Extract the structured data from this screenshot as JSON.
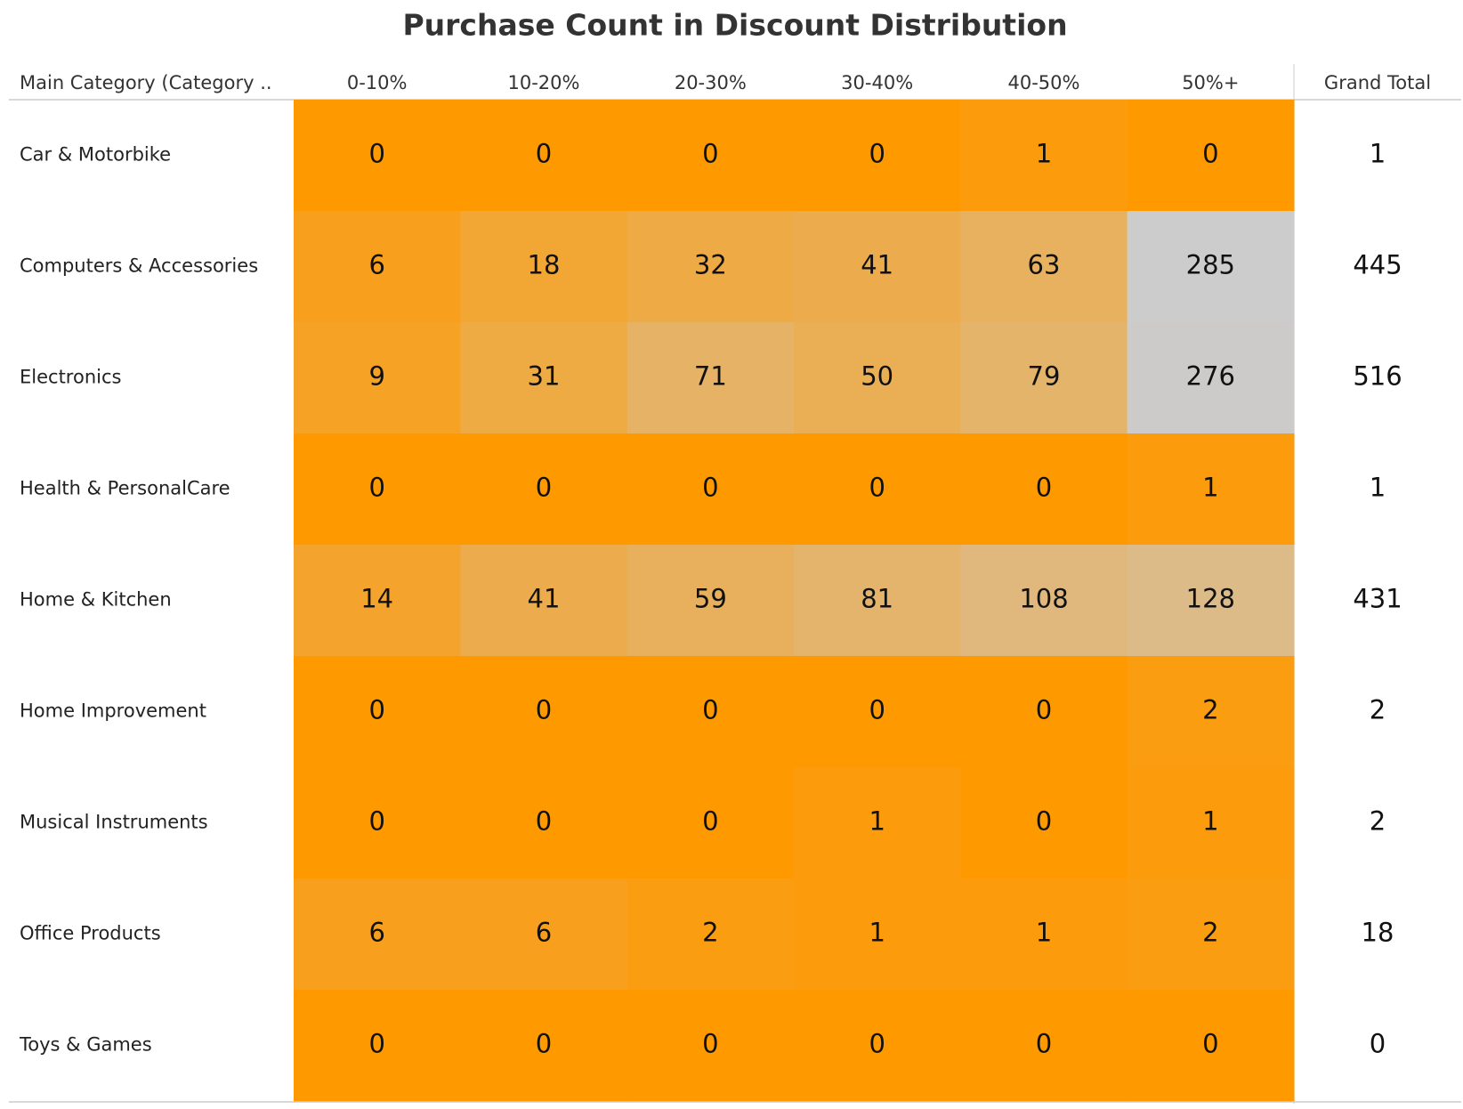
{
  "chart_data": {
    "type": "heatmap",
    "title": "Purchase Count in Discount Distribution",
    "row_header": "Main Category (Category ..",
    "total_header": "Grand Total",
    "columns": [
      "0-10%",
      "10-20%",
      "20-30%",
      "30-40%",
      "40-50%",
      "50%+"
    ],
    "rows": [
      "Car & Motorbike",
      "Computers & Accessories",
      "Electronics",
      "Health & PersonalCare",
      "Home & Kitchen",
      "Home Improvement",
      "Musical Instruments",
      "Office Products",
      "Toys & Games"
    ],
    "values": [
      [
        0,
        0,
        0,
        0,
        1,
        0
      ],
      [
        6,
        18,
        32,
        41,
        63,
        285
      ],
      [
        9,
        31,
        71,
        50,
        79,
        276
      ],
      [
        0,
        0,
        0,
        0,
        0,
        1
      ],
      [
        14,
        41,
        59,
        81,
        108,
        128
      ],
      [
        0,
        0,
        0,
        0,
        0,
        2
      ],
      [
        0,
        0,
        0,
        1,
        0,
        1
      ],
      [
        6,
        6,
        2,
        1,
        1,
        2
      ],
      [
        0,
        0,
        0,
        0,
        0,
        0
      ]
    ],
    "row_totals": [
      1,
      445,
      516,
      1,
      431,
      2,
      2,
      18,
      0
    ],
    "color_scale": [
      "#FF9900",
      "#CCCCCC"
    ]
  }
}
